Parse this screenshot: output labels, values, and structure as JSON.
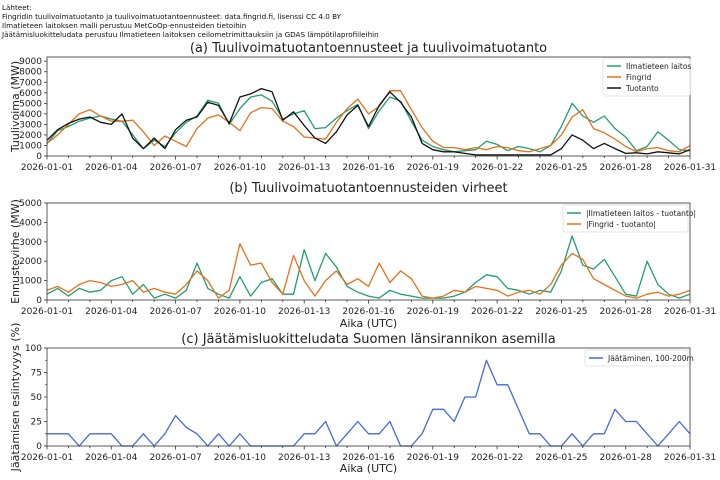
{
  "sources": {
    "heading": "Lähteet:",
    "lines": [
      "Fingridin tuulivoimatuotanto ja tuulivoimatuotantoennusteet: data.fingrid.fi, lisenssi CC 4.0 BY",
      "Ilmatieteen laitoksen malli perustuu MetCoOp-ennusteiden tietoihin",
      "Jäätämisluokitteludata perustuu Ilmatieteen laitoksen ceilometrimittauksiin ja GDAS lämpötilaprofiileihin"
    ]
  },
  "chart_data": [
    {
      "type": "line",
      "title": "(a) Tuulivoimatuotantoennusteet ja tuulivoimatuotanto",
      "xlabel": "",
      "ylabel": "Tuulivoima (MW)",
      "x_start": "2026-01-01",
      "x_step_days": 0.5,
      "xlim": [
        "2026-01-01",
        "2026-01-31"
      ],
      "xticks": [
        "2026-01-01",
        "2026-01-04",
        "2026-01-07",
        "2026-01-10",
        "2026-01-13",
        "2026-01-16",
        "2026-01-19",
        "2026-01-22",
        "2026-01-25",
        "2026-01-28",
        "2026-01-31"
      ],
      "ylim": [
        0,
        9400
      ],
      "yticks": [
        0,
        1000,
        2000,
        3000,
        4000,
        5000,
        6000,
        7000,
        8000,
        9000
      ],
      "legend": "top-right",
      "grid": false,
      "series": [
        {
          "name": "Ilmatieteen laitos",
          "color": "#1f9e74",
          "values": [
            1200,
            2400,
            2800,
            3300,
            3600,
            3800,
            3500,
            3300,
            2000,
            700,
            1500,
            900,
            2200,
            3200,
            3800,
            5300,
            5000,
            3000,
            4500,
            5600,
            5800,
            5200,
            3500,
            4000,
            4300,
            2600,
            2700,
            3600,
            4300,
            4900,
            2600,
            4300,
            5600,
            5200,
            3300,
            1500,
            900,
            600,
            400,
            500,
            600,
            1400,
            1100,
            500,
            900,
            700,
            400,
            1000,
            2800,
            5000,
            3800,
            3200,
            3800,
            2600,
            1800,
            500,
            900,
            2300,
            1500,
            600,
            500
          ]
        },
        {
          "name": "Fingrid",
          "color": "#e8701a",
          "values": [
            1200,
            2000,
            3000,
            4000,
            4400,
            3800,
            3300,
            3300,
            3400,
            2300,
            1000,
            1900,
            1400,
            900,
            2600,
            3600,
            3900,
            3200,
            2400,
            4100,
            4600,
            4500,
            3300,
            2800,
            1800,
            1700,
            1600,
            3200,
            4500,
            5400,
            4000,
            4700,
            6200,
            6200,
            4400,
            2700,
            1400,
            800,
            800,
            600,
            800,
            600,
            900,
            800,
            500,
            400,
            700,
            1000,
            2000,
            3700,
            4400,
            2600,
            2200,
            1600,
            900,
            400,
            700,
            800,
            500,
            400,
            1000
          ]
        },
        {
          "name": "Tuotanto",
          "color": "#111111",
          "values": [
            1500,
            2500,
            3100,
            3500,
            3700,
            3200,
            3000,
            4000,
            1700,
            700,
            1700,
            700,
            2500,
            3400,
            3700,
            5100,
            4800,
            3100,
            5600,
            5900,
            6400,
            6100,
            3400,
            4200,
            2900,
            1700,
            1200,
            2300,
            3900,
            4800,
            2800,
            4800,
            6100,
            5100,
            3700,
            1200,
            600,
            400,
            400,
            250,
            100,
            100,
            100,
            100,
            100,
            100,
            100,
            100,
            700,
            2000,
            1500,
            700,
            1200,
            700,
            250,
            300,
            200,
            400,
            300,
            200,
            600
          ]
        }
      ]
    },
    {
      "type": "line",
      "title": "(b) Tuulivoimatuotantoennusteiden virheet",
      "xlabel": "Aika (UTC)",
      "ylabel": "Ennustevirhe (MW)",
      "x_start": "2026-01-01",
      "x_step_days": 0.5,
      "xlim": [
        "2026-01-01",
        "2026-01-31"
      ],
      "xticks": [
        "2026-01-01",
        "2026-01-04",
        "2026-01-07",
        "2026-01-10",
        "2026-01-13",
        "2026-01-16",
        "2026-01-19",
        "2026-01-22",
        "2026-01-25",
        "2026-01-28",
        "2026-01-31"
      ],
      "ylim": [
        0,
        5000
      ],
      "yticks": [
        0,
        1000,
        2000,
        3000,
        4000,
        5000
      ],
      "legend": "top-right",
      "grid": false,
      "series": [
        {
          "name": "|Ilmatieteen laitos - tuotanto|",
          "color": "#1f9e74",
          "values": [
            300,
            600,
            200,
            600,
            400,
            500,
            1000,
            1200,
            300,
            800,
            100,
            300,
            100,
            500,
            1900,
            600,
            300,
            100,
            1200,
            200,
            900,
            1100,
            300,
            300,
            2600,
            1000,
            2400,
            1700,
            700,
            400,
            200,
            100,
            500,
            300,
            200,
            100,
            100,
            100,
            200,
            400,
            900,
            1300,
            1200,
            600,
            500,
            300,
            500,
            400,
            1500,
            3300,
            1800,
            1600,
            2100,
            1200,
            300,
            200,
            2000,
            800,
            300,
            100,
            300
          ]
        },
        {
          "name": "|Fingrid - tuotanto|",
          "color": "#e8701a",
          "values": [
            500,
            700,
            400,
            800,
            1000,
            900,
            700,
            800,
            1000,
            400,
            600,
            400,
            300,
            800,
            1500,
            1000,
            100,
            500,
            2900,
            1800,
            1900,
            900,
            300,
            2300,
            1000,
            200,
            1000,
            1500,
            800,
            1100,
            700,
            1900,
            900,
            1500,
            1100,
            200,
            100,
            200,
            500,
            400,
            700,
            600,
            500,
            200,
            400,
            500,
            300,
            800,
            1800,
            2400,
            2100,
            1100,
            800,
            500,
            200,
            100,
            300,
            400,
            200,
            300,
            500
          ]
        }
      ]
    },
    {
      "type": "line",
      "title": "(c) Jäätämisluokitteludata Suomen länsirannikon asemilla",
      "xlabel": "Aika (UTC)",
      "ylabel": "Jäätämisen esiintyvyys (%)",
      "x_start": "2026-01-01",
      "x_step_days": 0.5,
      "xlim": [
        "2026-01-01",
        "2026-01-31"
      ],
      "xticks": [
        "2026-01-01",
        "2026-01-04",
        "2026-01-07",
        "2026-01-10",
        "2026-01-13",
        "2026-01-16",
        "2026-01-19",
        "2026-01-22",
        "2026-01-25",
        "2026-01-28",
        "2026-01-31"
      ],
      "ylim": [
        0,
        100
      ],
      "yticks": [
        0,
        25,
        50,
        75,
        100
      ],
      "legend": "top-right",
      "grid": false,
      "series": [
        {
          "name": "Jäätäminen, 100-200m",
          "color": "#4169e1",
          "values": [
            12.5,
            12.5,
            12.5,
            0,
            12.5,
            12.5,
            12.5,
            0,
            0,
            12.5,
            0,
            12.5,
            31,
            19,
            12.5,
            0,
            12.5,
            0,
            12.5,
            0,
            0,
            0,
            0,
            0,
            12.5,
            12.5,
            25,
            0,
            12.5,
            25,
            12.5,
            12.5,
            25,
            0,
            0,
            12.5,
            37.5,
            37.5,
            25,
            50,
            50,
            87.5,
            62.5,
            62.5,
            37.5,
            12.5,
            12.5,
            0,
            0,
            12.5,
            0,
            12.5,
            12.5,
            37.5,
            25,
            25,
            12.5,
            0,
            12.5,
            25,
            12.5
          ]
        }
      ]
    }
  ]
}
